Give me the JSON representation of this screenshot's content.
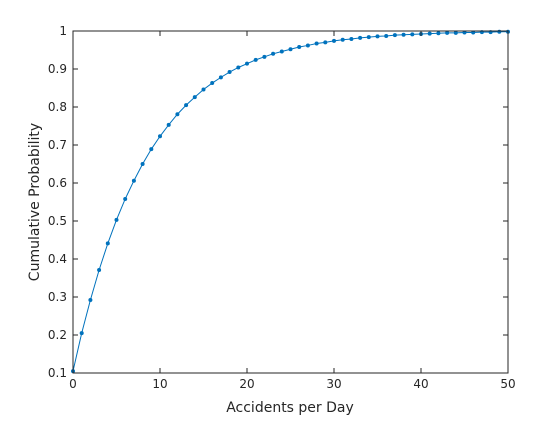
{
  "chart_data": {
    "type": "line",
    "title": "",
    "xlabel": "Accidents per Day",
    "ylabel": "Cumulative Probability",
    "xlim": [
      0,
      50
    ],
    "ylim": [
      0.1,
      1
    ],
    "xticks": [
      0,
      10,
      20,
      30,
      40,
      50
    ],
    "yticks": [
      0.1,
      0.2,
      0.3,
      0.4,
      0.5,
      0.6,
      0.7,
      0.8,
      0.9,
      1
    ],
    "ytick_labels": [
      "0.1",
      "0.2",
      "0.3",
      "0.4",
      "0.5",
      "0.6",
      "0.7",
      "0.8",
      "0.9",
      "1"
    ],
    "grid": false,
    "series": [
      {
        "color": "#0072BD",
        "marker": "dot",
        "x": [
          0,
          1,
          2,
          3,
          4,
          5,
          6,
          7,
          8,
          9,
          10,
          11,
          12,
          13,
          14,
          15,
          16,
          17,
          18,
          19,
          20,
          21,
          22,
          23,
          24,
          25,
          26,
          27,
          28,
          29,
          30,
          31,
          32,
          33,
          34,
          35,
          36,
          37,
          38,
          39,
          40,
          41,
          42,
          43,
          44,
          45,
          46,
          47,
          48,
          49,
          50
        ],
        "values": [
          0.105,
          0.205,
          0.292,
          0.371,
          0.441,
          0.503,
          0.558,
          0.606,
          0.65,
          0.689,
          0.723,
          0.753,
          0.781,
          0.805,
          0.826,
          0.846,
          0.863,
          0.878,
          0.892,
          0.904,
          0.914,
          0.924,
          0.932,
          0.94,
          0.946,
          0.952,
          0.958,
          0.962,
          0.967,
          0.97,
          0.974,
          0.977,
          0.979,
          0.982,
          0.984,
          0.986,
          0.987,
          0.989,
          0.99,
          0.991,
          0.992,
          0.993,
          0.994,
          0.995,
          0.995,
          0.996,
          0.996,
          0.997,
          0.997,
          0.998,
          0.998
        ]
      }
    ]
  }
}
